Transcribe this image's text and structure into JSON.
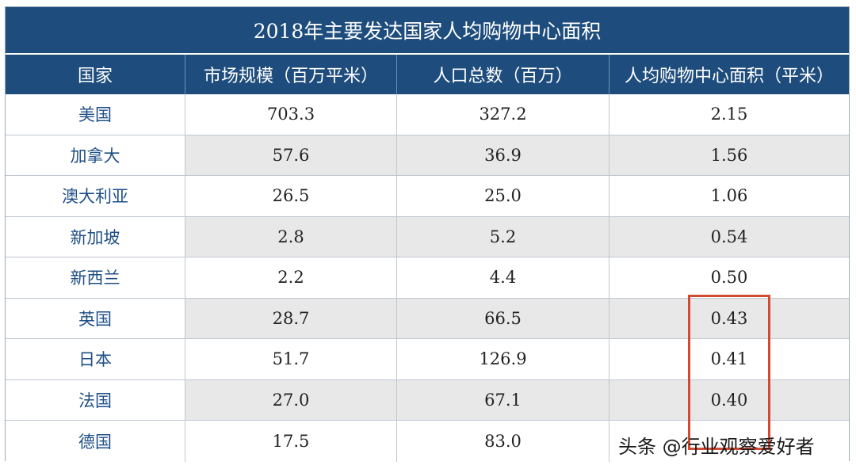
{
  "title": "2018年主要发达国家人均购物中心面积",
  "headers": [
    "国家",
    "市场规模（百万平米）",
    "人口总数（百万）",
    "人均购物中心面积（平米）"
  ],
  "rows": [
    {
      "country": "美国",
      "market": "703.3",
      "population": "327.2",
      "per_capita": "2.15"
    },
    {
      "country": "加拿大",
      "market": "57.6",
      "population": "36.9",
      "per_capita": "1.56"
    },
    {
      "country": "澳大利亚",
      "market": "26.5",
      "population": "25.0",
      "per_capita": "1.06"
    },
    {
      "country": "新加坡",
      "market": "2.8",
      "population": "5.2",
      "per_capita": "0.54"
    },
    {
      "country": "新西兰",
      "market": "2.2",
      "population": "4.4",
      "per_capita": "0.50"
    },
    {
      "country": "英国",
      "market": "28.7",
      "population": "66.5",
      "per_capita": "0.43"
    },
    {
      "country": "日本",
      "market": "51.7",
      "population": "126.9",
      "per_capita": "0.41"
    },
    {
      "country": "法国",
      "market": "27.0",
      "population": "67.1",
      "per_capita": "0.40"
    },
    {
      "country": "德国",
      "market": "17.5",
      "population": "83.0",
      "per_capita": ""
    }
  ],
  "watermark": "头条 @行业观察爱好者",
  "colors": {
    "header_bg": "#1e4d7d",
    "country_text": "#1f4f86",
    "highlight": "#d24a32",
    "shade": "#e8e8e8"
  },
  "chart_data": {
    "type": "table",
    "title": "2018年主要发达国家人均购物中心面积",
    "columns": [
      "国家",
      "市场规模（百万平米）",
      "人口总数（百万）",
      "人均购物中心面积（平米）"
    ],
    "rows": [
      [
        "美国",
        703.3,
        327.2,
        2.15
      ],
      [
        "加拿大",
        57.6,
        36.9,
        1.56
      ],
      [
        "澳大利亚",
        26.5,
        25.0,
        1.06
      ],
      [
        "新加坡",
        2.8,
        5.2,
        0.54
      ],
      [
        "新西兰",
        2.2,
        4.4,
        0.5
      ],
      [
        "英国",
        28.7,
        66.5,
        0.43
      ],
      [
        "日本",
        51.7,
        126.9,
        0.41
      ],
      [
        "法国",
        27.0,
        67.1,
        0.4
      ],
      [
        "德国",
        17.5,
        83.0,
        null
      ]
    ],
    "highlighted_cells": [
      "英国·人均",
      "日本·人均",
      "法国·人均"
    ]
  }
}
